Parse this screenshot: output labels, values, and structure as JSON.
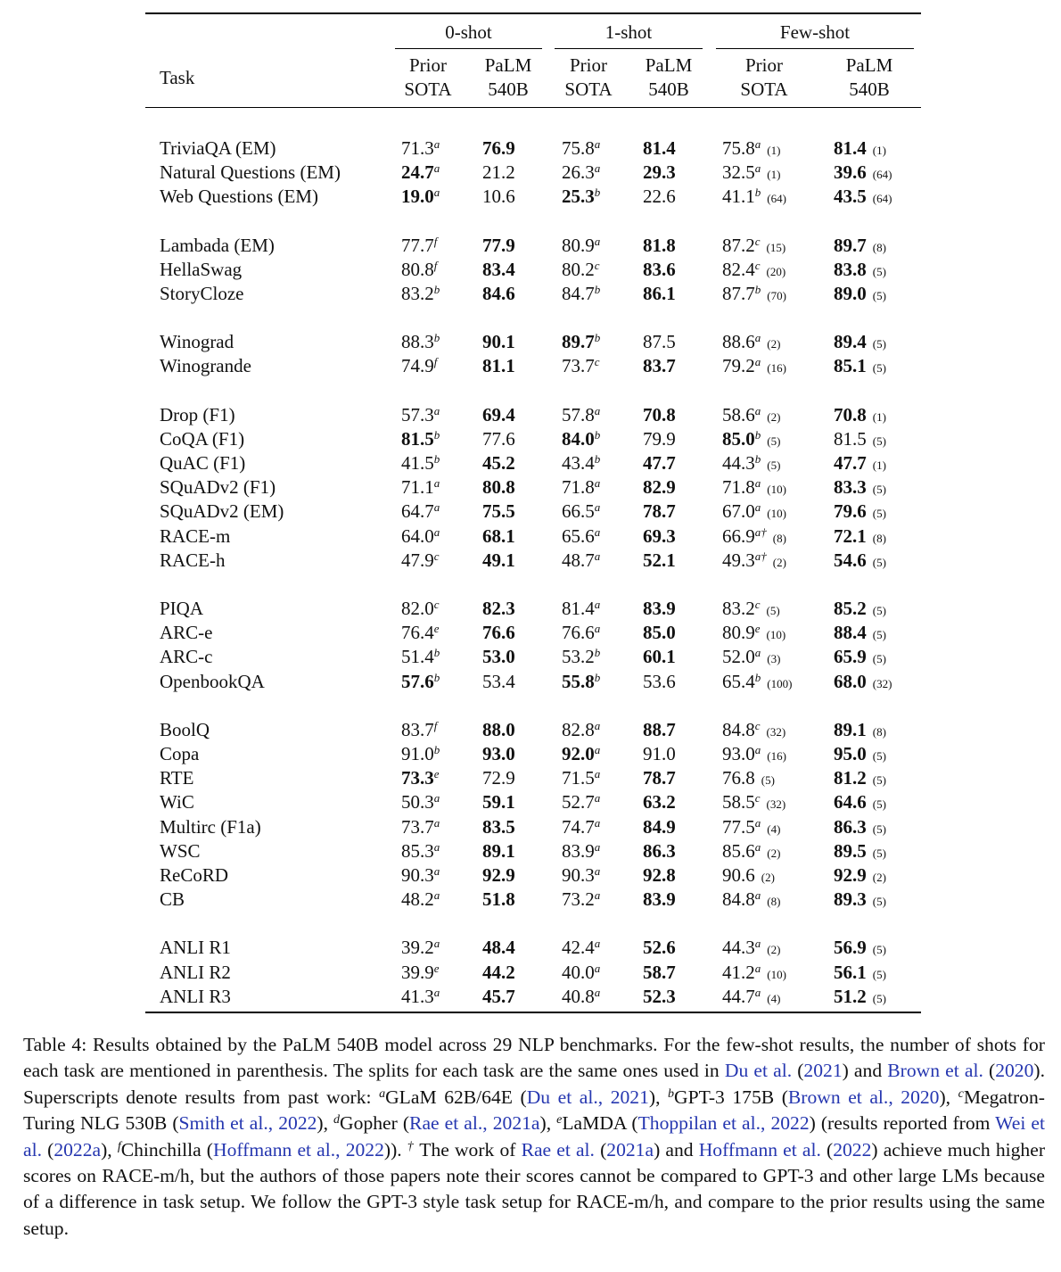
{
  "table": {
    "task_header": "Task",
    "groups": [
      {
        "label": "0-shot"
      },
      {
        "label": "1-shot"
      },
      {
        "label": "Few-shot"
      }
    ],
    "subheaders": [
      [
        "Prior",
        "SOTA"
      ],
      [
        "PaLM",
        "540B"
      ],
      [
        "Prior",
        "SOTA"
      ],
      [
        "PaLM",
        "540B"
      ],
      [
        "Prior",
        "SOTA"
      ],
      [
        "PaLM",
        "540B"
      ]
    ],
    "row_groups": [
      [
        [
          "TriviaQA (EM)",
          [
            "71.3",
            "a",
            0
          ],
          [
            "76.9",
            "",
            1
          ],
          [
            "75.8",
            "a",
            0
          ],
          [
            "81.4",
            "",
            1
          ],
          [
            "75.8",
            "a",
            0,
            "(1)"
          ],
          [
            "81.4",
            "",
            1,
            "(1)"
          ]
        ],
        [
          "Natural Questions (EM)",
          [
            "24.7",
            "a",
            1
          ],
          [
            "21.2",
            "",
            0
          ],
          [
            "26.3",
            "a",
            0
          ],
          [
            "29.3",
            "",
            1
          ],
          [
            "32.5",
            "a",
            0,
            "(1)"
          ],
          [
            "39.6",
            "",
            1,
            "(64)"
          ]
        ],
        [
          "Web Questions (EM)",
          [
            "19.0",
            "a",
            1
          ],
          [
            "10.6",
            "",
            0
          ],
          [
            "25.3",
            "b",
            1
          ],
          [
            "22.6",
            "",
            0
          ],
          [
            "41.1",
            "b",
            0,
            "(64)"
          ],
          [
            "43.5",
            "",
            1,
            "(64)"
          ]
        ]
      ],
      [
        [
          "Lambada (EM)",
          [
            "77.7",
            "f",
            0
          ],
          [
            "77.9",
            "",
            1
          ],
          [
            "80.9",
            "a",
            0
          ],
          [
            "81.8",
            "",
            1
          ],
          [
            "87.2",
            "c",
            0,
            "(15)"
          ],
          [
            "89.7",
            "",
            1,
            "(8)"
          ]
        ],
        [
          "HellaSwag",
          [
            "80.8",
            "f",
            0
          ],
          [
            "83.4",
            "",
            1
          ],
          [
            "80.2",
            "c",
            0
          ],
          [
            "83.6",
            "",
            1
          ],
          [
            "82.4",
            "c",
            0,
            "(20)"
          ],
          [
            "83.8",
            "",
            1,
            "(5)"
          ]
        ],
        [
          "StoryCloze",
          [
            "83.2",
            "b",
            0
          ],
          [
            "84.6",
            "",
            1
          ],
          [
            "84.7",
            "b",
            0
          ],
          [
            "86.1",
            "",
            1
          ],
          [
            "87.7",
            "b",
            0,
            "(70)"
          ],
          [
            "89.0",
            "",
            1,
            "(5)"
          ]
        ]
      ],
      [
        [
          "Winograd",
          [
            "88.3",
            "b",
            0
          ],
          [
            "90.1",
            "",
            1
          ],
          [
            "89.7",
            "b",
            1
          ],
          [
            "87.5",
            "",
            0
          ],
          [
            "88.6",
            "a",
            0,
            "(2)"
          ],
          [
            "89.4",
            "",
            1,
            "(5)"
          ]
        ],
        [
          "Winogrande",
          [
            "74.9",
            "f",
            0
          ],
          [
            "81.1",
            "",
            1
          ],
          [
            "73.7",
            "c",
            0
          ],
          [
            "83.7",
            "",
            1
          ],
          [
            "79.2",
            "a",
            0,
            "(16)"
          ],
          [
            "85.1",
            "",
            1,
            "(5)"
          ]
        ]
      ],
      [
        [
          "Drop (F1)",
          [
            "57.3",
            "a",
            0
          ],
          [
            "69.4",
            "",
            1
          ],
          [
            "57.8",
            "a",
            0
          ],
          [
            "70.8",
            "",
            1
          ],
          [
            "58.6",
            "a",
            0,
            "(2)"
          ],
          [
            "70.8",
            "",
            1,
            "(1)"
          ]
        ],
        [
          "CoQA (F1)",
          [
            "81.5",
            "b",
            1
          ],
          [
            "77.6",
            "",
            0
          ],
          [
            "84.0",
            "b",
            1
          ],
          [
            "79.9",
            "",
            0
          ],
          [
            "85.0",
            "b",
            1,
            "(5)"
          ],
          [
            "81.5",
            "",
            0,
            "(5)"
          ]
        ],
        [
          "QuAC (F1)",
          [
            "41.5",
            "b",
            0
          ],
          [
            "45.2",
            "",
            1
          ],
          [
            "43.4",
            "b",
            0
          ],
          [
            "47.7",
            "",
            1
          ],
          [
            "44.3",
            "b",
            0,
            "(5)"
          ],
          [
            "47.7",
            "",
            1,
            "(1)"
          ]
        ],
        [
          "SQuADv2 (F1)",
          [
            "71.1",
            "a",
            0
          ],
          [
            "80.8",
            "",
            1
          ],
          [
            "71.8",
            "a",
            0
          ],
          [
            "82.9",
            "",
            1
          ],
          [
            "71.8",
            "a",
            0,
            "(10)"
          ],
          [
            "83.3",
            "",
            1,
            "(5)"
          ]
        ],
        [
          "SQuADv2 (EM)",
          [
            "64.7",
            "a",
            0
          ],
          [
            "75.5",
            "",
            1
          ],
          [
            "66.5",
            "a",
            0
          ],
          [
            "78.7",
            "",
            1
          ],
          [
            "67.0",
            "a",
            0,
            "(10)"
          ],
          [
            "79.6",
            "",
            1,
            "(5)"
          ]
        ],
        [
          "RACE-m",
          [
            "64.0",
            "a",
            0
          ],
          [
            "68.1",
            "",
            1
          ],
          [
            "65.6",
            "a",
            0
          ],
          [
            "69.3",
            "",
            1
          ],
          [
            "66.9",
            "a†",
            0,
            "(8)"
          ],
          [
            "72.1",
            "",
            1,
            "(8)"
          ]
        ],
        [
          "RACE-h",
          [
            "47.9",
            "c",
            0
          ],
          [
            "49.1",
            "",
            1
          ],
          [
            "48.7",
            "a",
            0
          ],
          [
            "52.1",
            "",
            1
          ],
          [
            "49.3",
            "a†",
            0,
            "(2)"
          ],
          [
            "54.6",
            "",
            1,
            "(5)"
          ]
        ]
      ],
      [
        [
          "PIQA",
          [
            "82.0",
            "c",
            0
          ],
          [
            "82.3",
            "",
            1
          ],
          [
            "81.4",
            "a",
            0
          ],
          [
            "83.9",
            "",
            1
          ],
          [
            "83.2",
            "c",
            0,
            "(5)"
          ],
          [
            "85.2",
            "",
            1,
            "(5)"
          ]
        ],
        [
          "ARC-e",
          [
            "76.4",
            "e",
            0
          ],
          [
            "76.6",
            "",
            1
          ],
          [
            "76.6",
            "a",
            0
          ],
          [
            "85.0",
            "",
            1
          ],
          [
            "80.9",
            "e",
            0,
            "(10)"
          ],
          [
            "88.4",
            "",
            1,
            "(5)"
          ]
        ],
        [
          "ARC-c",
          [
            "51.4",
            "b",
            0
          ],
          [
            "53.0",
            "",
            1
          ],
          [
            "53.2",
            "b",
            0
          ],
          [
            "60.1",
            "",
            1
          ],
          [
            "52.0",
            "a",
            0,
            "(3)"
          ],
          [
            "65.9",
            "",
            1,
            "(5)"
          ]
        ],
        [
          "OpenbookQA",
          [
            "57.6",
            "b",
            1
          ],
          [
            "53.4",
            "",
            0
          ],
          [
            "55.8",
            "b",
            1
          ],
          [
            "53.6",
            "",
            0
          ],
          [
            "65.4",
            "b",
            0,
            "(100)"
          ],
          [
            "68.0",
            "",
            1,
            "(32)"
          ]
        ]
      ],
      [
        [
          "BoolQ",
          [
            "83.7",
            "f",
            0
          ],
          [
            "88.0",
            "",
            1
          ],
          [
            "82.8",
            "a",
            0
          ],
          [
            "88.7",
            "",
            1
          ],
          [
            "84.8",
            "c",
            0,
            "(32)"
          ],
          [
            "89.1",
            "",
            1,
            "(8)"
          ]
        ],
        [
          "Copa",
          [
            "91.0",
            "b",
            0
          ],
          [
            "93.0",
            "",
            1
          ],
          [
            "92.0",
            "a",
            1
          ],
          [
            "91.0",
            "",
            0
          ],
          [
            "93.0",
            "a",
            0,
            "(16)"
          ],
          [
            "95.0",
            "",
            1,
            "(5)"
          ]
        ],
        [
          "RTE",
          [
            "73.3",
            "e",
            1
          ],
          [
            "72.9",
            "",
            0
          ],
          [
            "71.5",
            "a",
            0
          ],
          [
            "78.7",
            "",
            1
          ],
          [
            "76.8",
            "",
            0,
            "(5)"
          ],
          [
            "81.2",
            "",
            1,
            "(5)"
          ]
        ],
        [
          "WiC",
          [
            "50.3",
            "a",
            0
          ],
          [
            "59.1",
            "",
            1
          ],
          [
            "52.7",
            "a",
            0
          ],
          [
            "63.2",
            "",
            1
          ],
          [
            "58.5",
            "c",
            0,
            "(32)"
          ],
          [
            "64.6",
            "",
            1,
            "(5)"
          ]
        ],
        [
          "Multirc (F1a)",
          [
            "73.7",
            "a",
            0
          ],
          [
            "83.5",
            "",
            1
          ],
          [
            "74.7",
            "a",
            0
          ],
          [
            "84.9",
            "",
            1
          ],
          [
            "77.5",
            "a",
            0,
            "(4)"
          ],
          [
            "86.3",
            "",
            1,
            "(5)"
          ]
        ],
        [
          "WSC",
          [
            "85.3",
            "a",
            0
          ],
          [
            "89.1",
            "",
            1
          ],
          [
            "83.9",
            "a",
            0
          ],
          [
            "86.3",
            "",
            1
          ],
          [
            "85.6",
            "a",
            0,
            "(2)"
          ],
          [
            "89.5",
            "",
            1,
            "(5)"
          ]
        ],
        [
          "ReCoRD",
          [
            "90.3",
            "a",
            0
          ],
          [
            "92.9",
            "",
            1
          ],
          [
            "90.3",
            "a",
            0
          ],
          [
            "92.8",
            "",
            1
          ],
          [
            "90.6",
            "",
            0,
            "(2)"
          ],
          [
            "92.9",
            "",
            1,
            "(2)"
          ]
        ],
        [
          "CB",
          [
            "48.2",
            "a",
            0
          ],
          [
            "51.8",
            "",
            1
          ],
          [
            "73.2",
            "a",
            0
          ],
          [
            "83.9",
            "",
            1
          ],
          [
            "84.8",
            "a",
            0,
            "(8)"
          ],
          [
            "89.3",
            "",
            1,
            "(5)"
          ]
        ]
      ],
      [
        [
          "ANLI R1",
          [
            "39.2",
            "a",
            0
          ],
          [
            "48.4",
            "",
            1
          ],
          [
            "42.4",
            "a",
            0
          ],
          [
            "52.6",
            "",
            1
          ],
          [
            "44.3",
            "a",
            0,
            "(2)"
          ],
          [
            "56.9",
            "",
            1,
            "(5)"
          ]
        ],
        [
          "ANLI R2",
          [
            "39.9",
            "e",
            0
          ],
          [
            "44.2",
            "",
            1
          ],
          [
            "40.0",
            "a",
            0
          ],
          [
            "58.7",
            "",
            1
          ],
          [
            "41.2",
            "a",
            0,
            "(10)"
          ],
          [
            "56.1",
            "",
            1,
            "(5)"
          ]
        ],
        [
          "ANLI R3",
          [
            "41.3",
            "a",
            0
          ],
          [
            "45.7",
            "",
            1
          ],
          [
            "40.8",
            "a",
            0
          ],
          [
            "52.3",
            "",
            1
          ],
          [
            "44.7",
            "a",
            0,
            "(4)"
          ],
          [
            "51.2",
            "",
            1,
            "(5)"
          ]
        ]
      ]
    ]
  },
  "caption": [
    {
      "t": "Table 4: Results obtained by the PaLM 540B model across 29 NLP benchmarks. For the few-shot results, the number of shots for each task are mentioned in parenthesis. The splits for each task are the same ones used in "
    },
    {
      "t": "Du et al.",
      "link": 1
    },
    {
      "t": " ("
    },
    {
      "t": "2021",
      "link": 1
    },
    {
      "t": ") and "
    },
    {
      "t": "Brown et al.",
      "link": 1
    },
    {
      "t": " ("
    },
    {
      "t": "2020",
      "link": 1
    },
    {
      "t": "). Superscripts denote results from past work: "
    },
    {
      "t": "a",
      "sup": 1
    },
    {
      "t": "GLaM 62B/64E ("
    },
    {
      "t": "Du et al.,",
      "link": 1
    },
    {
      "t": " "
    },
    {
      "t": "2021",
      "link": 1
    },
    {
      "t": "), "
    },
    {
      "t": "b",
      "sup": 1
    },
    {
      "t": "GPT-3 175B ("
    },
    {
      "t": "Brown et al.,",
      "link": 1
    },
    {
      "t": " "
    },
    {
      "t": "2020",
      "link": 1
    },
    {
      "t": "), "
    },
    {
      "t": "c",
      "sup": 1
    },
    {
      "t": "Megatron-Turing NLG 530B ("
    },
    {
      "t": "Smith et al.,",
      "link": 1
    },
    {
      "t": " "
    },
    {
      "t": "2022",
      "link": 1
    },
    {
      "t": "), "
    },
    {
      "t": "d",
      "sup": 1
    },
    {
      "t": "Gopher ("
    },
    {
      "t": "Rae et al.,",
      "link": 1
    },
    {
      "t": " "
    },
    {
      "t": "2021a",
      "link": 1
    },
    {
      "t": "), "
    },
    {
      "t": "e",
      "sup": 1
    },
    {
      "t": "LaMDA ("
    },
    {
      "t": "Thoppilan et al.,",
      "link": 1
    },
    {
      "t": " "
    },
    {
      "t": "2022",
      "link": 1
    },
    {
      "t": ") (results reported from "
    },
    {
      "t": "Wei et al.",
      "link": 1
    },
    {
      "t": " ("
    },
    {
      "t": "2022a",
      "link": 1
    },
    {
      "t": "), "
    },
    {
      "t": "f",
      "sup": 1
    },
    {
      "t": "Chinchilla ("
    },
    {
      "t": "Hoffmann et al.,",
      "link": 1
    },
    {
      "t": " "
    },
    {
      "t": "2022",
      "link": 1
    },
    {
      "t": ")). "
    },
    {
      "t": "†",
      "sup": 1
    },
    {
      "t": " The work of "
    },
    {
      "t": "Rae et al.",
      "link": 1
    },
    {
      "t": " ("
    },
    {
      "t": "2021a",
      "link": 1
    },
    {
      "t": ") and "
    },
    {
      "t": "Hoffmann et al.",
      "link": 1
    },
    {
      "t": " ("
    },
    {
      "t": "2022",
      "link": 1
    },
    {
      "t": ") achieve much higher scores on RACE-m/h, but the authors of those papers note their scores cannot be compared to GPT-3 and other large LMs because of a difference in task setup. We follow the GPT-3 style task setup for RACE-m/h, and compare to the prior results using the same setup."
    }
  ]
}
